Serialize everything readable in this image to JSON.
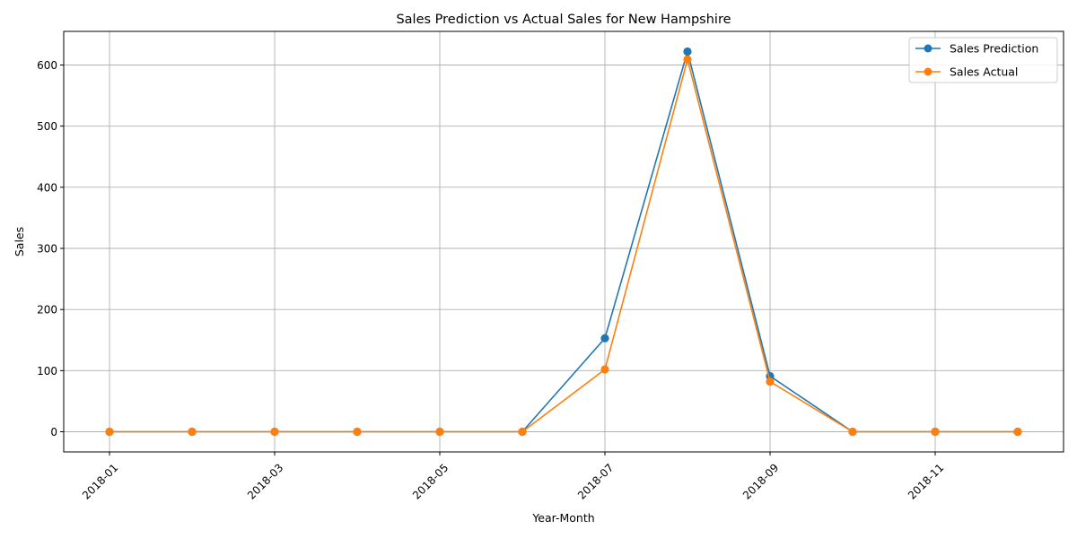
{
  "chart_data": {
    "type": "line",
    "title": "Sales Prediction vs Actual Sales for New Hampshire",
    "xlabel": "Year-Month",
    "ylabel": "Sales",
    "x": [
      "2018-01",
      "2018-02",
      "2018-03",
      "2018-04",
      "2018-05",
      "2018-06",
      "2018-07",
      "2018-08",
      "2018-09",
      "2018-10",
      "2018-11",
      "2018-12"
    ],
    "x_ticks": [
      "2018-01",
      "2018-03",
      "2018-05",
      "2018-07",
      "2018-09",
      "2018-11"
    ],
    "y_ticks": [
      0,
      100,
      200,
      300,
      400,
      500,
      600
    ],
    "ylim": [
      -33,
      655
    ],
    "grid": true,
    "legend_position": "top-right",
    "series": [
      {
        "name": "Sales Prediction",
        "color": "#1f77b4",
        "values": [
          0,
          0,
          0,
          0,
          0,
          0,
          153,
          622,
          91,
          0,
          0,
          0
        ]
      },
      {
        "name": "Sales Actual",
        "color": "#ff7f0e",
        "values": [
          0,
          0,
          0,
          0,
          0,
          0,
          102,
          609,
          82,
          0,
          0,
          0
        ]
      }
    ]
  }
}
